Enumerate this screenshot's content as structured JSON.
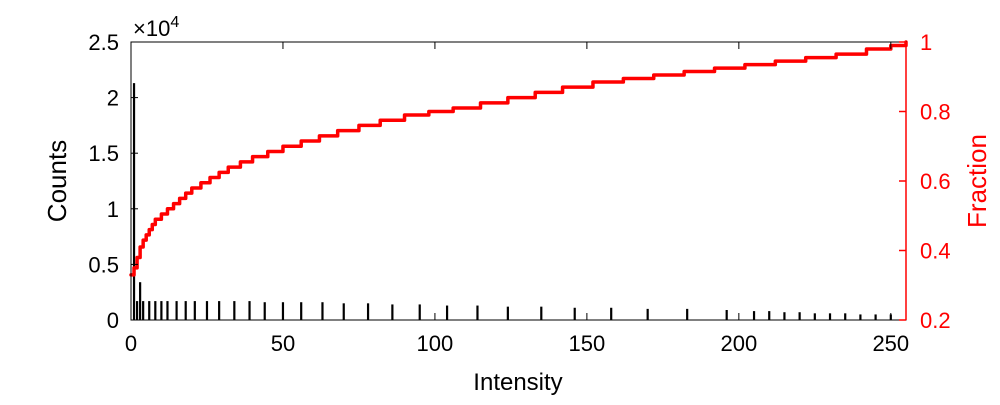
{
  "chart_data": {
    "type": "bar",
    "xlabel": "Intensity",
    "ylabel_left": "Counts",
    "ylabel_right": "Fraction",
    "left_axis_multiplier": "×10",
    "left_axis_multiplier_exp": "4",
    "colors": {
      "bars": "#000000",
      "cdf": "#ff0000",
      "right_axis": "#ff0000"
    },
    "xlim": [
      0,
      255
    ],
    "ylim_left": [
      0,
      25000
    ],
    "ylim_right": [
      0.2,
      1.0
    ],
    "x_ticks": [
      0,
      50,
      100,
      150,
      200,
      250
    ],
    "x_tick_labels": [
      "0",
      "50",
      "100",
      "150",
      "200",
      "250"
    ],
    "y_left_ticks": [
      0,
      5000,
      10000,
      15000,
      20000,
      25000
    ],
    "y_left_tick_labels": [
      "0",
      "0.5",
      "1",
      "1.5",
      "2",
      "2.5"
    ],
    "y_right_ticks": [
      0.2,
      0.4,
      0.6,
      0.8,
      1.0
    ],
    "y_right_tick_labels": [
      "0.2",
      "0.4",
      "0.6",
      "0.8",
      "1"
    ],
    "grid": false,
    "series": [
      {
        "name": "",
        "kind": "bar",
        "axis": "left",
        "x": [
          1,
          2,
          3,
          4,
          6,
          8,
          10,
          12,
          15,
          18,
          21,
          25,
          29,
          34,
          39,
          44,
          50,
          56,
          63,
          70,
          78,
          86,
          95,
          104,
          114,
          124,
          135,
          146,
          158,
          170,
          183,
          196,
          205,
          210,
          215,
          220,
          225,
          230,
          235,
          240,
          245,
          250
        ],
        "values": [
          21300,
          1700,
          3400,
          1700,
          1700,
          1700,
          1700,
          1700,
          1700,
          1700,
          1700,
          1700,
          1700,
          1700,
          1700,
          1600,
          1600,
          1600,
          1600,
          1500,
          1500,
          1400,
          1400,
          1300,
          1300,
          1200,
          1200,
          1100,
          1100,
          1000,
          1000,
          900,
          800,
          800,
          700,
          700,
          600,
          600,
          600,
          500,
          500,
          500
        ]
      },
      {
        "name": "",
        "kind": "line",
        "axis": "right",
        "x": [
          0,
          1,
          2,
          3,
          4,
          5,
          6,
          7,
          8,
          10,
          12,
          14,
          16,
          18,
          20,
          23,
          26,
          29,
          32,
          36,
          40,
          45,
          50,
          56,
          62,
          68,
          75,
          82,
          90,
          98,
          106,
          115,
          124,
          133,
          142,
          152,
          162,
          172,
          182,
          192,
          202,
          212,
          222,
          232,
          242,
          250,
          255
        ],
        "values": [
          0.33,
          0.35,
          0.38,
          0.41,
          0.43,
          0.445,
          0.46,
          0.475,
          0.49,
          0.505,
          0.52,
          0.535,
          0.55,
          0.565,
          0.58,
          0.595,
          0.61,
          0.625,
          0.64,
          0.655,
          0.67,
          0.685,
          0.7,
          0.715,
          0.73,
          0.745,
          0.76,
          0.775,
          0.79,
          0.8,
          0.81,
          0.825,
          0.84,
          0.855,
          0.87,
          0.885,
          0.895,
          0.905,
          0.915,
          0.925,
          0.935,
          0.945,
          0.955,
          0.965,
          0.98,
          0.99,
          1.0
        ]
      }
    ]
  }
}
